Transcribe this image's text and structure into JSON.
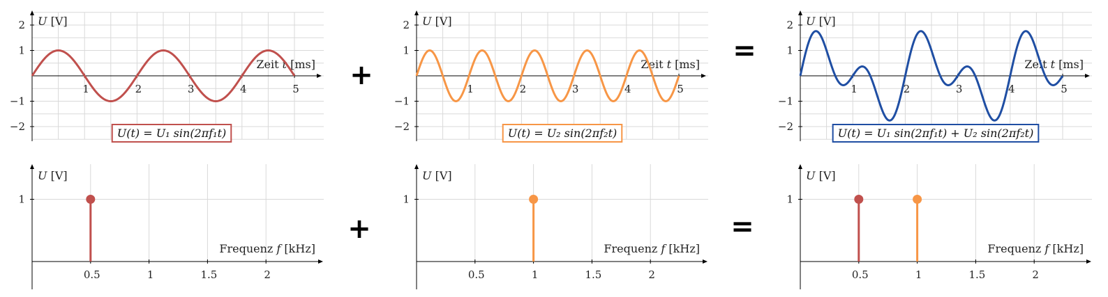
{
  "colors": {
    "red": "#c0504d",
    "orange": "#f79646",
    "blue": "#1f4ea3",
    "grid": "#d9d9d9",
    "axis": "#000000"
  },
  "operators": {
    "plus": "+",
    "equals": "="
  },
  "chart_data": [
    {
      "id": "time-sine-1",
      "type": "line",
      "xlabel": "Zeit t [ms]",
      "ylabel": "U [V]",
      "xlim": [
        0,
        5
      ],
      "ylim": [
        -2,
        2
      ],
      "xticks": [
        1,
        2,
        3,
        4,
        5
      ],
      "xticklabels": [
        "1",
        "2",
        "3",
        "4",
        "5"
      ],
      "yticks": [
        -2,
        -1,
        1,
        2
      ],
      "yticklabels": [
        "−2",
        "−1",
        "1",
        "2"
      ],
      "grid": true,
      "formula": "U(t) = U₁ sin(2πf₁t)",
      "series": [
        {
          "amplitudes": [
            1
          ],
          "frequencies_kHz": [
            0.5
          ],
          "color": "#c0504d"
        }
      ]
    },
    {
      "id": "time-sine-2",
      "type": "line",
      "xlabel": "Zeit t [ms]",
      "ylabel": "U [V]",
      "xlim": [
        0,
        5
      ],
      "ylim": [
        -2,
        2
      ],
      "xticks": [
        1,
        2,
        3,
        4,
        5
      ],
      "xticklabels": [
        "1",
        "2",
        "3",
        "4",
        "5"
      ],
      "yticks": [
        -2,
        -1,
        1,
        2
      ],
      "yticklabels": [
        "−2",
        "−1",
        "1",
        "2"
      ],
      "grid": true,
      "formula": "U(t) = U₂ sin(2πf₂t)",
      "series": [
        {
          "amplitudes": [
            1
          ],
          "frequencies_kHz": [
            1
          ],
          "color": "#f79646"
        }
      ]
    },
    {
      "id": "time-sum",
      "type": "line",
      "xlabel": "Zeit t [ms]",
      "ylabel": "U [V]",
      "xlim": [
        0,
        5
      ],
      "ylim": [
        -2,
        2
      ],
      "xticks": [
        1,
        2,
        3,
        4,
        5
      ],
      "xticklabels": [
        "1",
        "2",
        "3",
        "4",
        "5"
      ],
      "yticks": [
        -2,
        -1,
        1,
        2
      ],
      "yticklabels": [
        "−2",
        "−1",
        "1",
        "2"
      ],
      "grid": true,
      "formula": "U(t) = U₁ sin(2πf₁t) + U₂ sin(2πf₂t)",
      "series": [
        {
          "amplitudes": [
            1,
            1
          ],
          "frequencies_kHz": [
            0.5,
            1
          ],
          "color": "#1f4ea3"
        }
      ]
    },
    {
      "id": "spectrum-1",
      "type": "stem",
      "xlabel": "Frequenz f [kHz]",
      "ylabel": "U [V]",
      "xlim": [
        0,
        2.5
      ],
      "ylim": [
        0,
        1.4
      ],
      "xticks": [
        0.5,
        1,
        1.5,
        2
      ],
      "xticklabels": [
        "0.5",
        "1",
        "1.5",
        "2"
      ],
      "yticks": [
        1
      ],
      "yticklabels": [
        "1"
      ],
      "grid": true,
      "stems": [
        {
          "x": 0.5,
          "y": 1,
          "color": "#c0504d"
        }
      ]
    },
    {
      "id": "spectrum-2",
      "type": "stem",
      "xlabel": "Frequenz f [kHz]",
      "ylabel": "U [V]",
      "xlim": [
        0,
        2.5
      ],
      "ylim": [
        0,
        1.4
      ],
      "xticks": [
        0.5,
        1,
        1.5,
        2
      ],
      "xticklabels": [
        "0.5",
        "1",
        "1.5",
        "2"
      ],
      "yticks": [
        1
      ],
      "yticklabels": [
        "1"
      ],
      "grid": true,
      "stems": [
        {
          "x": 1,
          "y": 1,
          "color": "#f79646"
        }
      ]
    },
    {
      "id": "spectrum-sum",
      "type": "stem",
      "xlabel": "Frequenz f [kHz]",
      "ylabel": "U [V]",
      "xlim": [
        0,
        2.5
      ],
      "ylim": [
        0,
        1.4
      ],
      "xticks": [
        0.5,
        1,
        1.5,
        2
      ],
      "xticklabels": [
        "0.5",
        "1",
        "1.5",
        "2"
      ],
      "yticks": [
        1
      ],
      "yticklabels": [
        "1"
      ],
      "grid": true,
      "stems": [
        {
          "x": 0.5,
          "y": 1,
          "color": "#c0504d"
        },
        {
          "x": 1,
          "y": 1,
          "color": "#f79646"
        }
      ]
    }
  ]
}
